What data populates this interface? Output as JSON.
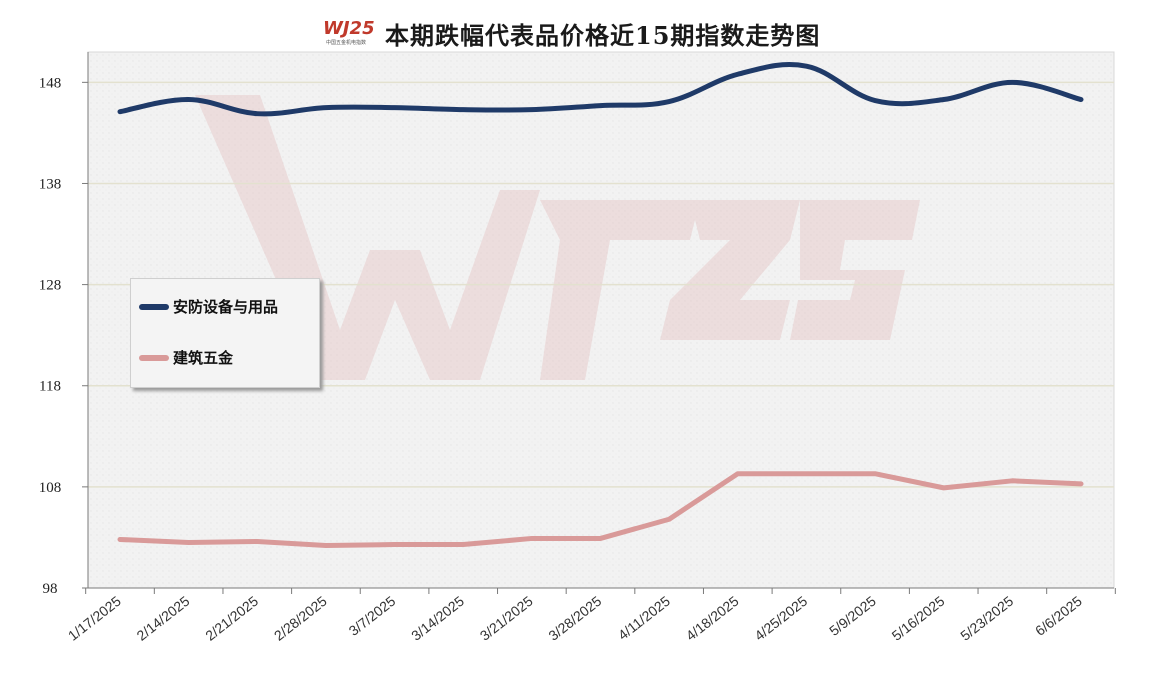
{
  "title": "本期跌幅代表品价格近15期指数走势图",
  "logo": {
    "text": "WJ25",
    "subtitle": "中国五金机电指数",
    "site": "WWW.WJ25.ORG"
  },
  "colors": {
    "series1": "#1f3a68",
    "series2": "#d99a99",
    "grid": "#e3e1cf",
    "axis": "#7a7a7a"
  },
  "chart_data": {
    "type": "line",
    "title": "本期跌幅代表品价格近15期指数走势图",
    "x": [
      "1/17/2025",
      "2/14/2025",
      "2/21/2025",
      "2/28/2025",
      "3/7/2025",
      "3/14/2025",
      "3/21/2025",
      "3/28/2025",
      "4/11/2025",
      "4/18/2025",
      "4/25/2025",
      "5/9/2025",
      "5/16/2025",
      "5/23/2025",
      "6/6/2025"
    ],
    "yticks": [
      98,
      108,
      118,
      128,
      138,
      148
    ],
    "ylim": [
      98,
      151
    ],
    "series": [
      {
        "name": "安防设备与用品",
        "values": [
          145.1,
          146.3,
          144.9,
          145.5,
          145.5,
          145.3,
          145.3,
          145.7,
          146.1,
          148.8,
          149.6,
          146.2,
          146.3,
          148.0,
          146.3
        ]
      },
      {
        "name": "建筑五金",
        "values": [
          102.8,
          102.5,
          102.6,
          102.2,
          102.3,
          102.3,
          102.9,
          102.9,
          104.8,
          109.3,
          109.3,
          109.3,
          107.9,
          108.6,
          108.3
        ]
      }
    ],
    "legend": "left-middle",
    "grid": true
  }
}
